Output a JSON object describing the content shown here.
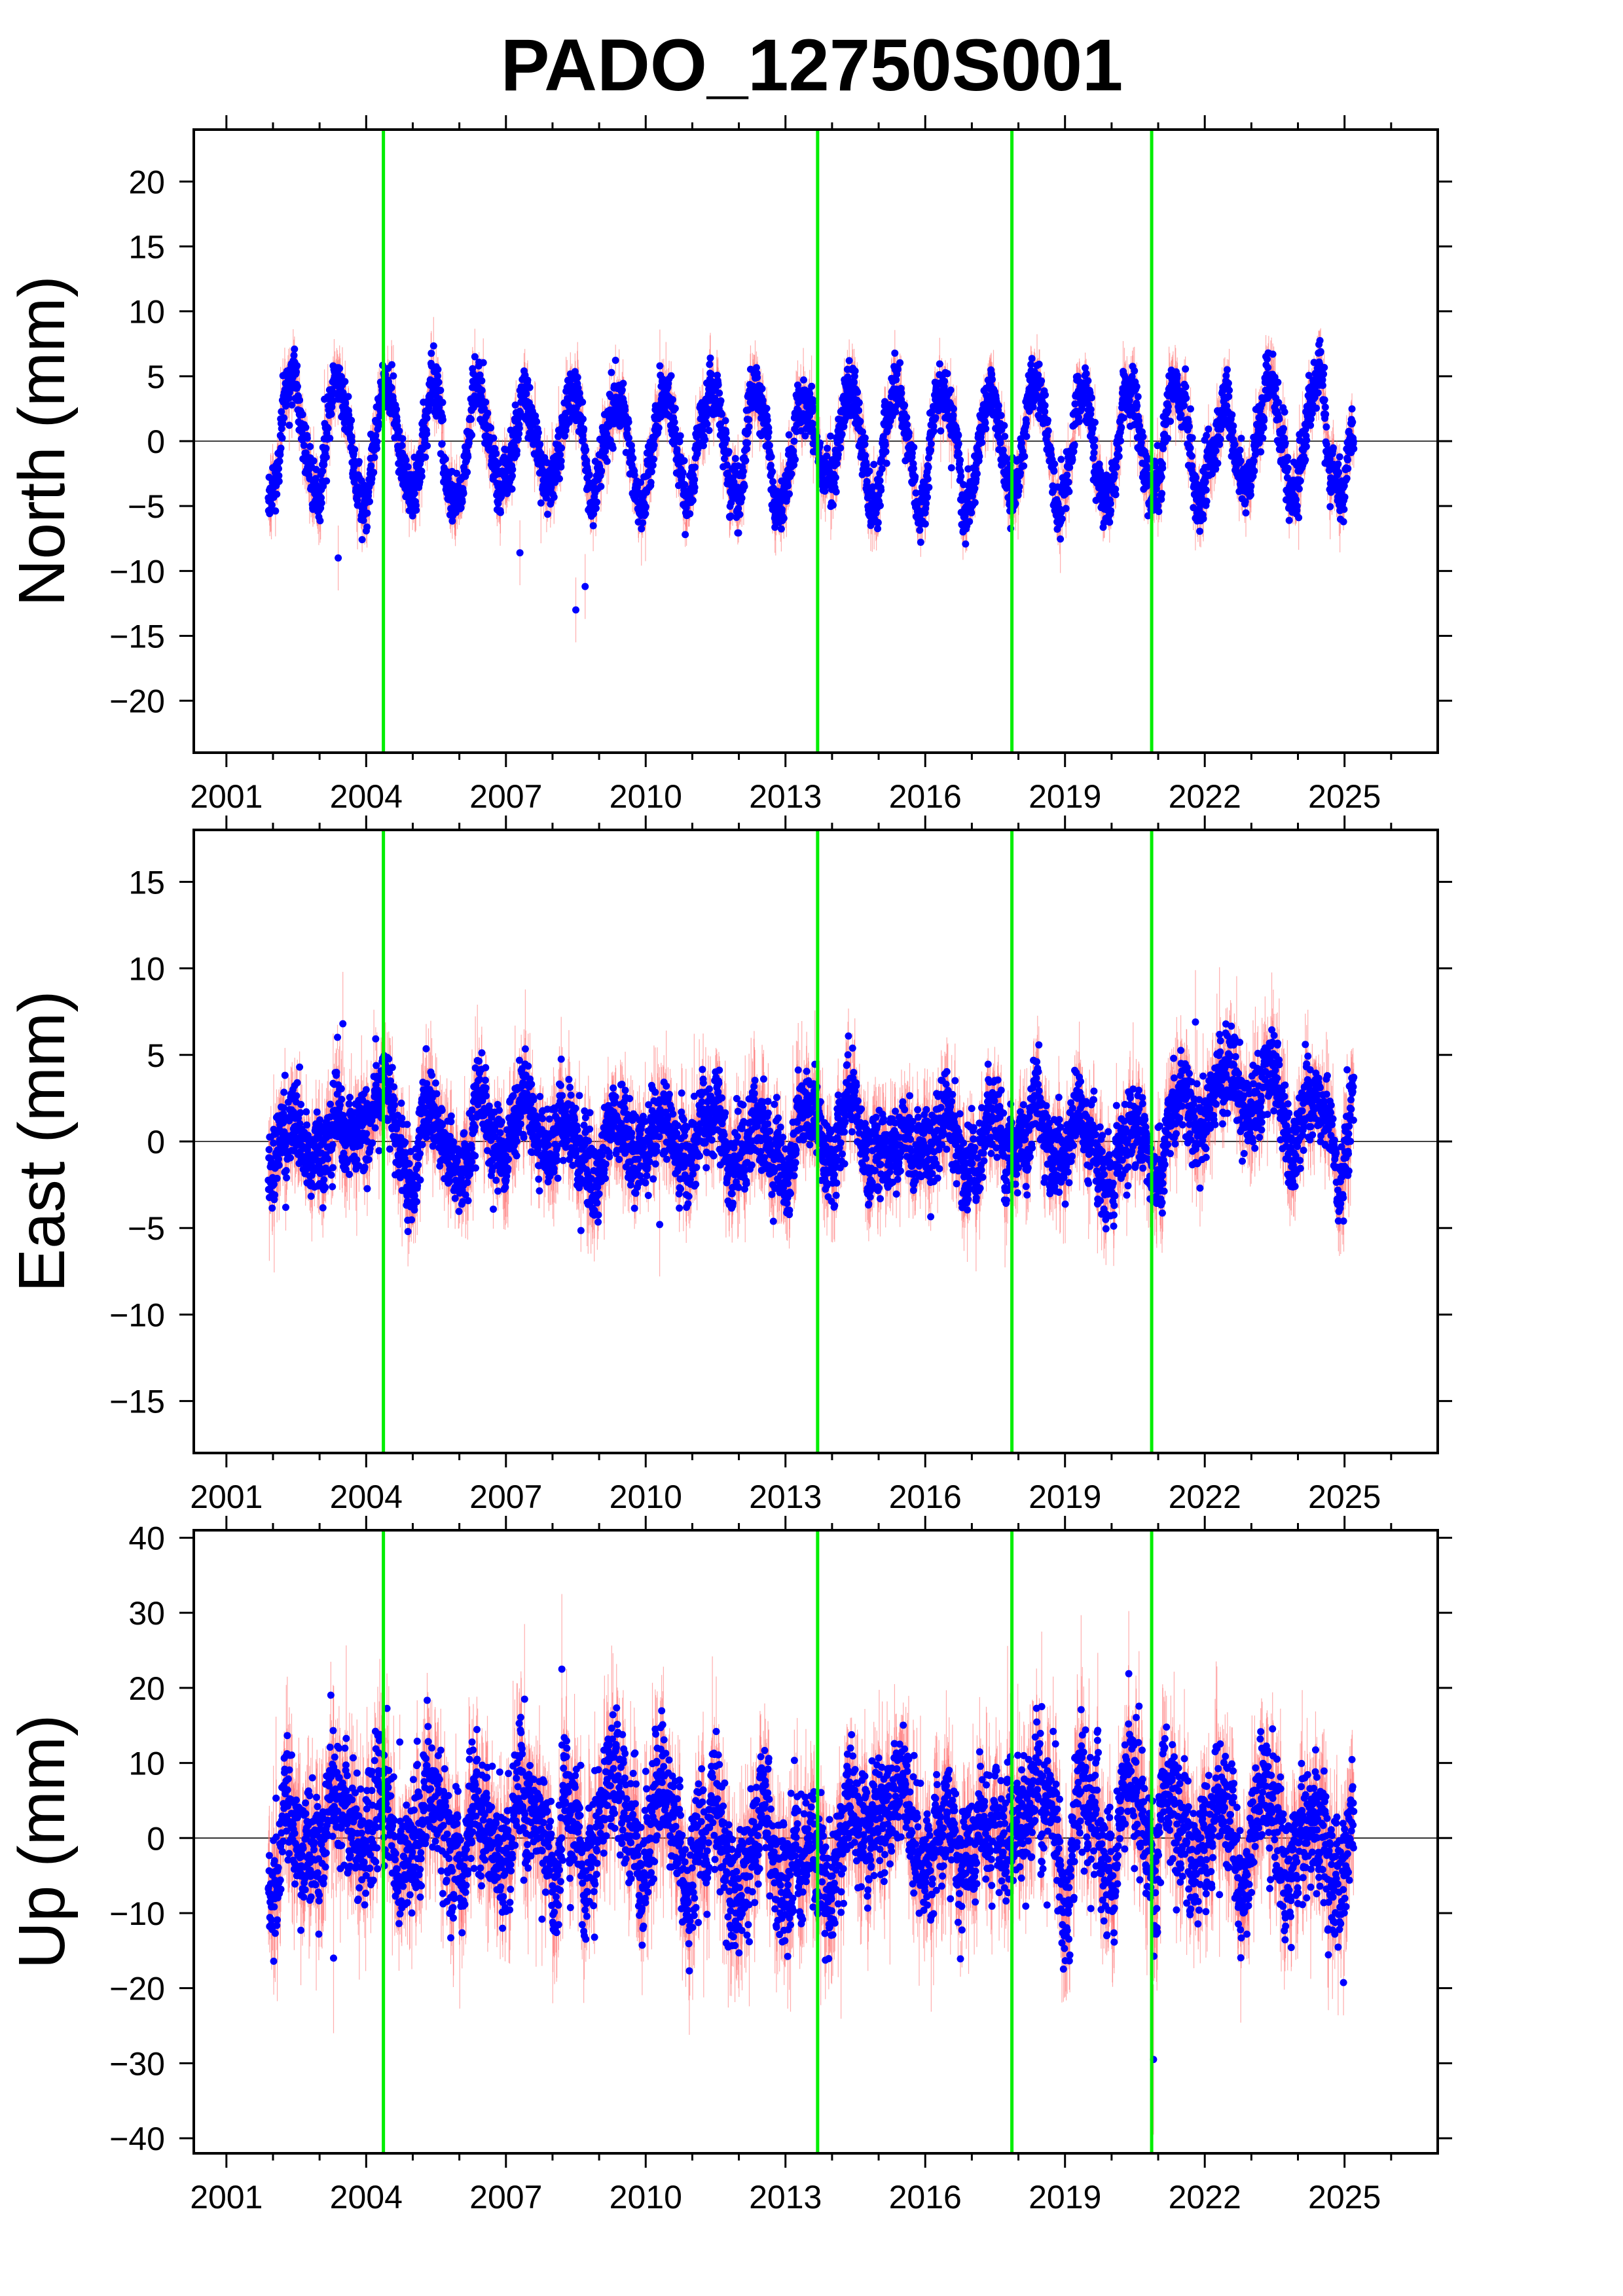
{
  "title": "PADO_12750S001",
  "colors": {
    "points": "#0000ff",
    "errorbars": "#ff6a6a",
    "offsets": "#00ee00",
    "frame": "#000000",
    "zeroline": "#000000"
  },
  "chart_data": [
    {
      "type": "scatter",
      "panel": "north",
      "ylabel": "North (mm)",
      "ylim": [
        -24,
        24
      ],
      "yticks": [
        -20,
        -15,
        -10,
        -5,
        0,
        5,
        10,
        15,
        20
      ],
      "xlim": [
        2000.3,
        2027.0
      ],
      "xticks": [
        2001,
        2004,
        2007,
        2010,
        2013,
        2016,
        2019,
        2022,
        2025
      ],
      "minor_xticks": [
        2002,
        2003,
        2005,
        2006,
        2008,
        2009,
        2011,
        2012,
        2014,
        2015,
        2017,
        2018,
        2020,
        2021,
        2023,
        2024,
        2026
      ],
      "offset_epochs": [
        2004.37,
        2013.69,
        2017.86,
        2020.86
      ],
      "data_span": [
        2001.9,
        2025.2
      ],
      "seasonal_amplitude": 4.0,
      "noise_sd": 1.0,
      "error_sd": 1.0,
      "outliers": [
        {
          "x": 2008.5,
          "y": -13.0
        },
        {
          "x": 2008.7,
          "y": -11.2
        },
        {
          "x": 2003.4,
          "y": -9.0
        },
        {
          "x": 2007.3,
          "y": -8.6
        }
      ]
    },
    {
      "type": "scatter",
      "panel": "east",
      "ylabel": "East (mm)",
      "ylim": [
        -18,
        18
      ],
      "yticks": [
        -15,
        -10,
        -5,
        0,
        5,
        10,
        15
      ],
      "xlim": [
        2000.3,
        2027.0
      ],
      "xticks": [
        2001,
        2004,
        2007,
        2010,
        2013,
        2016,
        2019,
        2022,
        2025
      ],
      "minor_xticks": [
        2002,
        2003,
        2005,
        2006,
        2008,
        2009,
        2011,
        2012,
        2014,
        2015,
        2017,
        2018,
        2020,
        2021,
        2023,
        2024,
        2026
      ],
      "offset_epochs": [
        2004.37,
        2013.69,
        2017.86,
        2020.86
      ],
      "data_span": [
        2001.9,
        2025.2
      ],
      "seasonal_amplitude": 1.6,
      "noise_sd": 1.1,
      "error_sd": 1.2,
      "bump": {
        "start": 2021.0,
        "peak": 2022.6,
        "end": 2024.8,
        "height": 3.2
      },
      "outliers": [
        {
          "x": 2003.5,
          "y": 6.8
        },
        {
          "x": 2010.3,
          "y": -4.8
        },
        {
          "x": 2021.8,
          "y": 6.9
        }
      ]
    },
    {
      "type": "scatter",
      "panel": "up",
      "ylabel": "Up (mm)",
      "ylim": [
        -42,
        41
      ],
      "yticks": [
        -40,
        -30,
        -20,
        -10,
        0,
        10,
        20,
        30,
        40
      ],
      "xlim": [
        2000.3,
        2027.0
      ],
      "xticks": [
        2001,
        2004,
        2007,
        2010,
        2013,
        2016,
        2019,
        2022,
        2025
      ],
      "minor_xticks": [
        2002,
        2003,
        2005,
        2006,
        2008,
        2009,
        2011,
        2012,
        2014,
        2015,
        2017,
        2018,
        2020,
        2021,
        2023,
        2024,
        2026
      ],
      "offset_epochs": [
        2004.37,
        2013.69,
        2017.86,
        2020.86
      ],
      "data_span": [
        2001.9,
        2025.2
      ],
      "seasonal_amplitude": 4.0,
      "noise_sd": 4.0,
      "error_sd": 4.0,
      "outliers": [
        {
          "x": 2008.2,
          "y": 22.5
        },
        {
          "x": 2018.5,
          "y": 17.5
        },
        {
          "x": 2003.3,
          "y": -16.0
        },
        {
          "x": 2020.9,
          "y": -29.5
        },
        {
          "x": 2007.4,
          "y": 18.5
        }
      ]
    }
  ]
}
